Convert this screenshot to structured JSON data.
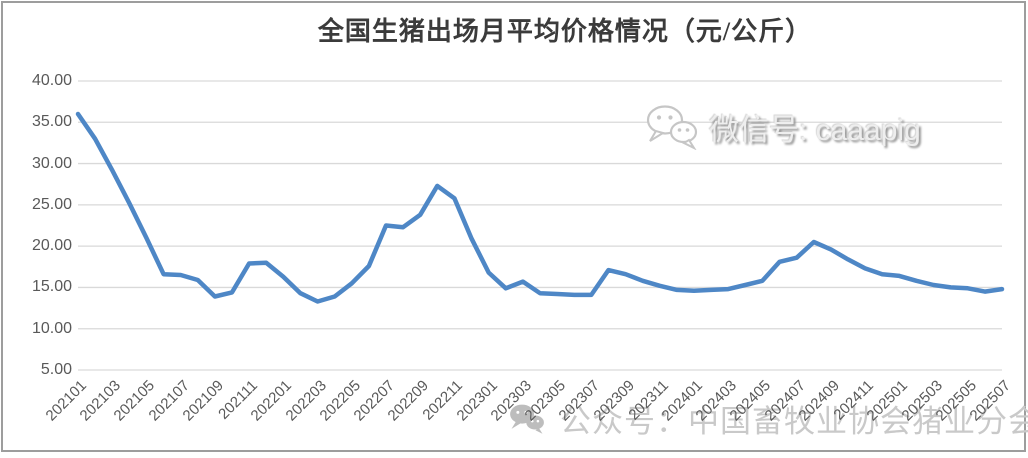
{
  "chart_data": {
    "type": "line",
    "title": "全国生猪出场月平均价格情况（元/公斤）",
    "xlabel": "",
    "ylabel": "",
    "ylim": [
      5,
      40
    ],
    "grid": true,
    "legend": "none",
    "line_color": "#4E87C6",
    "gridline_color": "#d9d9d9",
    "ytick_labels": [
      "40.00",
      "35.00",
      "30.00",
      "25.00",
      "20.00",
      "15.00",
      "10.00",
      "5.00"
    ],
    "x_tick_step": 2,
    "x": [
      "202101",
      "202102",
      "202103",
      "202104",
      "202105",
      "202106",
      "202107",
      "202108",
      "202109",
      "202110",
      "202111",
      "202112",
      "202201",
      "202202",
      "202203",
      "202204",
      "202205",
      "202206",
      "202207",
      "202208",
      "202209",
      "202210",
      "202211",
      "202212",
      "202301",
      "202302",
      "202303",
      "202304",
      "202305",
      "202306",
      "202307",
      "202308",
      "202309",
      "202310",
      "202311",
      "202312",
      "202401",
      "202402",
      "202403",
      "202404",
      "202405",
      "202406",
      "202407",
      "202408",
      "202409",
      "202410",
      "202411",
      "202412",
      "202501",
      "202502",
      "202503",
      "202504",
      "202505",
      "202506",
      "202507"
    ],
    "series": [
      {
        "name": "全国生猪出场月平均价格",
        "values": [
          36.0,
          33.0,
          29.2,
          25.2,
          21.0,
          16.6,
          16.5,
          15.9,
          13.9,
          14.4,
          17.9,
          18.0,
          16.3,
          14.3,
          13.3,
          13.9,
          15.5,
          17.6,
          22.5,
          22.3,
          23.8,
          27.3,
          25.8,
          20.9,
          16.8,
          14.9,
          15.7,
          14.3,
          14.2,
          14.1,
          14.1,
          17.1,
          16.6,
          15.8,
          15.2,
          14.7,
          14.6,
          14.7,
          14.8,
          15.3,
          15.8,
          18.1,
          18.6,
          20.5,
          19.6,
          18.4,
          17.3,
          16.6,
          16.4,
          15.8,
          15.3,
          15.0,
          14.9,
          14.5,
          14.8
        ]
      }
    ]
  },
  "watermarks": {
    "wechat_id": "微信号: caaapig",
    "account": "公众号：中国畜牧业协会猪业分会"
  }
}
